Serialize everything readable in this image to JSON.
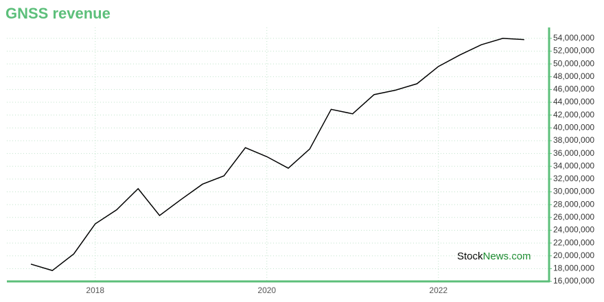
{
  "chart_data": {
    "type": "line",
    "title": "GNSS revenue",
    "x": [
      2017.25,
      2017.5,
      2017.75,
      2018.0,
      2018.25,
      2018.5,
      2018.75,
      2019.0,
      2019.25,
      2019.5,
      2019.75,
      2020.0,
      2020.25,
      2020.5,
      2020.75,
      2021.0,
      2021.25,
      2021.5,
      2021.75,
      2022.0,
      2022.25,
      2022.5,
      2022.75,
      2023.0
    ],
    "series": [
      {
        "color": "#000000",
        "values": [
          18700000,
          17700000,
          20300000,
          25000000,
          27200000,
          30500000,
          26300000,
          28800000,
          31200000,
          32500000,
          36900000,
          35500000,
          33700000,
          36700000,
          42900000,
          42200000,
          45200000,
          45900000,
          46900000,
          49600000,
          51400000,
          53000000,
          54000000,
          53800000
        ]
      }
    ],
    "xlim": [
      2016.97,
      2023.29
    ],
    "xticks": [
      2018,
      2020,
      2022
    ],
    "ylim": [
      16000000,
      55700000
    ],
    "yticks": [
      {
        "value": 16000000,
        "label": "16,000,000"
      },
      {
        "value": 18000000,
        "label": "18,000,000"
      },
      {
        "value": 20000000,
        "label": "20,000,000"
      },
      {
        "value": 22000000,
        "label": "22,000,000"
      },
      {
        "value": 24000000,
        "label": "24,000,000"
      },
      {
        "value": 26000000,
        "label": "26,000,000"
      },
      {
        "value": 28000000,
        "label": "28,000,000"
      },
      {
        "value": 30000000,
        "label": "30,000,000"
      },
      {
        "value": 32000000,
        "label": "32,000,000"
      },
      {
        "value": 34000000,
        "label": "34,000,000"
      },
      {
        "value": 36000000,
        "label": "36,000,000"
      },
      {
        "value": 38000000,
        "label": "38,000,000"
      },
      {
        "value": 40000000,
        "label": "40,000,000"
      },
      {
        "value": 42000000,
        "label": "42,000,000"
      },
      {
        "value": 44000000,
        "label": "44,000,000"
      },
      {
        "value": 46000000,
        "label": "46,000,000"
      },
      {
        "value": 48000000,
        "label": "48,000,000"
      },
      {
        "value": 50000000,
        "label": "50,000,000"
      },
      {
        "value": 52000000,
        "label": "52,000,000"
      },
      {
        "value": 54000000,
        "label": "54,000,000"
      }
    ],
    "grid": true,
    "watermark": [
      "Stock",
      "News.com"
    ]
  }
}
